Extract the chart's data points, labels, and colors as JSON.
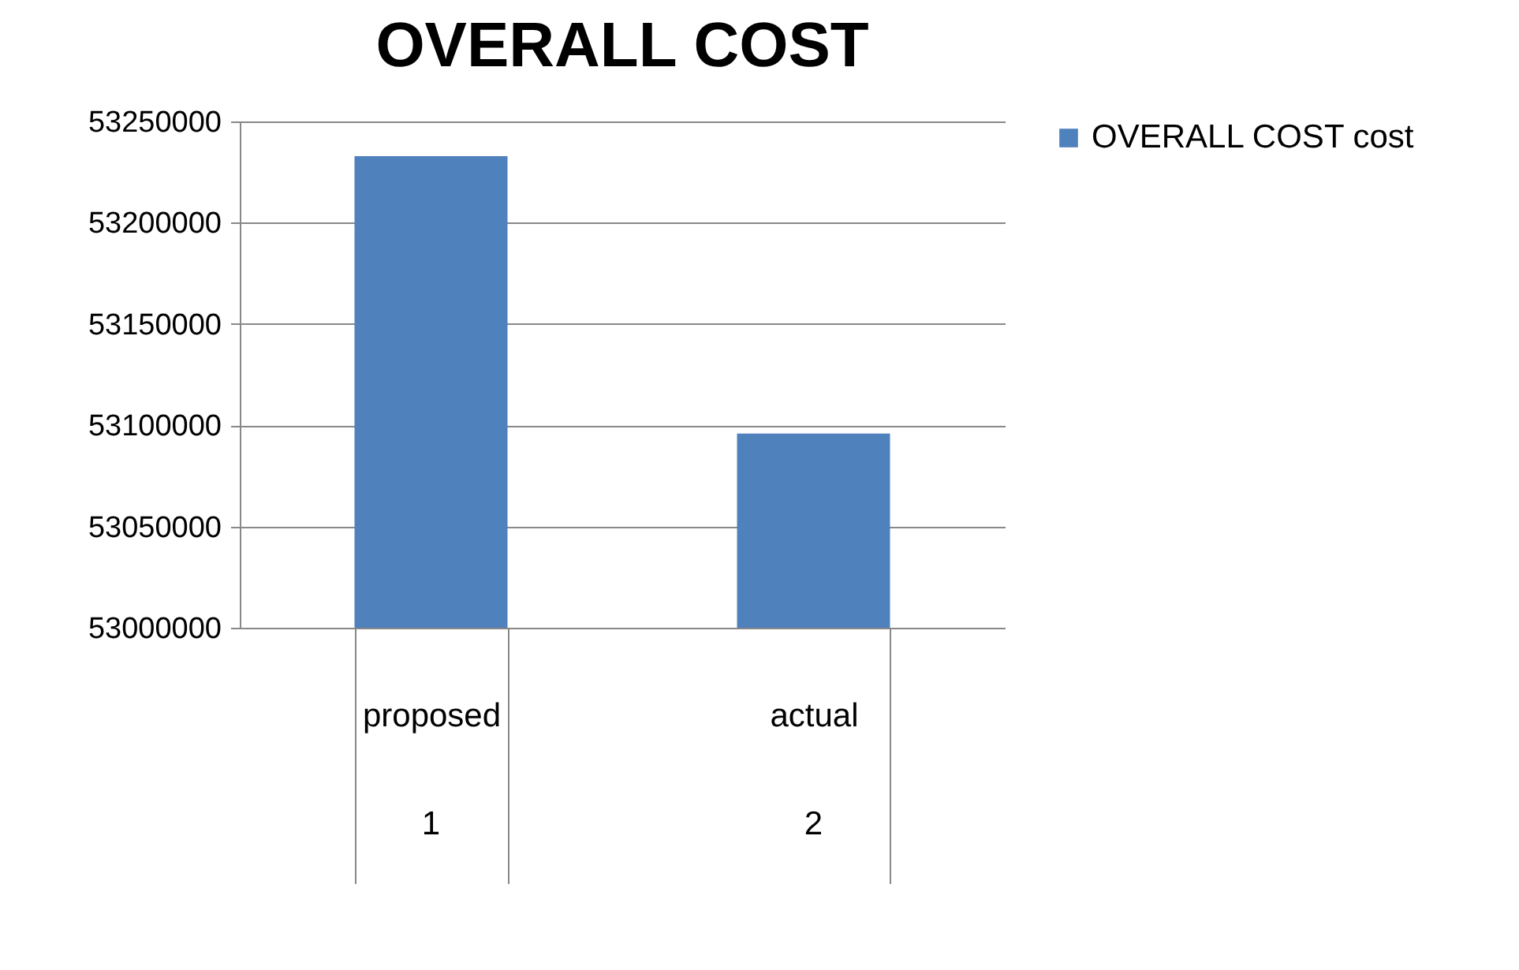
{
  "chart_data": {
    "type": "bar",
    "title": "OVERALL COST",
    "categories": [
      "proposed",
      "actual"
    ],
    "series": [
      {
        "name": "OVERALL  COST  cost",
        "color": "#4f81bd",
        "values": [
          53232900,
          53095900
        ]
      }
    ],
    "annotations": [
      "1",
      "2"
    ],
    "ylim": [
      53000000,
      53250000
    ],
    "yticks": [
      53000000,
      53050000,
      53100000,
      53150000,
      53200000,
      53250000
    ],
    "grid": "y",
    "legend": "right"
  }
}
